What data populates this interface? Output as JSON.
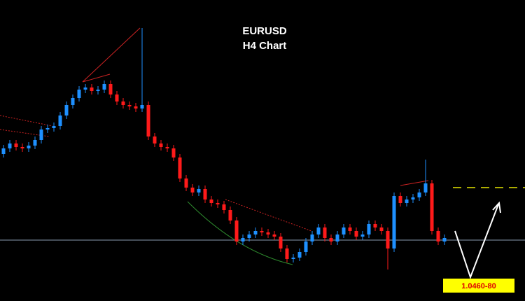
{
  "chart_data": {
    "type": "candlestick",
    "title": "EURUSD",
    "subtitle": "H4 Chart",
    "annotation": "1.0460-80",
    "up_color": "#1e90ff",
    "down_color": "#ff1a1a",
    "open": [
      1.068,
      1.0688,
      1.0695,
      1.069,
      1.0688,
      1.0692,
      1.07,
      1.0715,
      1.0717,
      1.072,
      1.0735,
      1.075,
      1.076,
      1.0772,
      1.0775,
      1.077,
      1.0772,
      1.078,
      1.0765,
      1.0755,
      1.075,
      1.0748,
      1.0745,
      1.075,
      1.0705,
      1.0695,
      1.069,
      1.0688,
      1.0675,
      1.0645,
      1.0632,
      1.0625,
      1.063,
      1.0615,
      1.061,
      1.0608,
      1.06,
      1.0585,
      1.0555,
      1.056,
      1.0565,
      1.057,
      1.0568,
      1.0565,
      1.0562,
      1.0545,
      1.053,
      1.0532,
      1.054,
      1.0555,
      1.0565,
      1.0575,
      1.056,
      1.0555,
      1.0565,
      1.0575,
      1.057,
      1.0562,
      1.0565,
      1.058,
      1.0575,
      1.057,
      1.0545,
      1.062,
      1.061,
      1.0615,
      1.0618,
      1.0625,
      1.0638,
      1.057,
      1.0555
    ],
    "high": [
      1.0693,
      1.07,
      1.07,
      1.0695,
      1.0697,
      1.0705,
      1.072,
      1.0722,
      1.0725,
      1.074,
      1.0755,
      1.0765,
      1.0777,
      1.078,
      1.078,
      1.0777,
      1.0785,
      1.0785,
      1.077,
      1.076,
      1.0755,
      1.0753,
      1.086,
      1.0755,
      1.071,
      1.07,
      1.0695,
      1.0693,
      1.068,
      1.065,
      1.0637,
      1.0635,
      1.0635,
      1.062,
      1.0615,
      1.0613,
      1.0605,
      1.059,
      1.0565,
      1.057,
      1.0575,
      1.0575,
      1.0573,
      1.057,
      1.0567,
      1.055,
      1.0537,
      1.0545,
      1.056,
      1.057,
      1.058,
      1.058,
      1.0565,
      1.057,
      1.058,
      1.058,
      1.0575,
      1.057,
      1.0585,
      1.0585,
      1.058,
      1.0575,
      1.0625,
      1.0625,
      1.062,
      1.0623,
      1.063,
      1.0672,
      1.0643,
      1.0575,
      1.0565
    ],
    "low": [
      1.0675,
      1.0683,
      1.0685,
      1.0683,
      1.0683,
      1.0687,
      1.0695,
      1.071,
      1.0712,
      1.0715,
      1.073,
      1.0745,
      1.0755,
      1.0767,
      1.0765,
      1.0765,
      1.0767,
      1.076,
      1.075,
      1.0745,
      1.0743,
      1.074,
      1.074,
      1.07,
      1.069,
      1.0685,
      1.0683,
      1.067,
      1.064,
      1.0627,
      1.062,
      1.062,
      1.061,
      1.0605,
      1.0603,
      1.0595,
      1.058,
      1.055,
      1.055,
      1.0555,
      1.056,
      1.0563,
      1.056,
      1.0557,
      1.054,
      1.0525,
      1.0525,
      1.0527,
      1.0535,
      1.055,
      1.056,
      1.0555,
      1.055,
      1.055,
      1.056,
      1.0565,
      1.0557,
      1.0557,
      1.056,
      1.057,
      1.0565,
      1.0515,
      1.054,
      1.0605,
      1.0605,
      1.061,
      1.0613,
      1.062,
      1.0565,
      1.055,
      1.055
    ],
    "close": [
      1.0688,
      1.0695,
      1.069,
      1.0688,
      1.0692,
      1.07,
      1.0715,
      1.0717,
      1.072,
      1.0735,
      1.075,
      1.076,
      1.0772,
      1.0775,
      1.077,
      1.0772,
      1.078,
      1.0765,
      1.0755,
      1.075,
      1.0748,
      1.0745,
      1.075,
      1.0705,
      1.0695,
      1.069,
      1.0688,
      1.0675,
      1.0645,
      1.0632,
      1.0625,
      1.063,
      1.0615,
      1.061,
      1.0608,
      1.06,
      1.0585,
      1.0555,
      1.056,
      1.0565,
      1.057,
      1.0568,
      1.0565,
      1.0562,
      1.0545,
      1.053,
      1.0532,
      1.054,
      1.0555,
      1.0565,
      1.0575,
      1.056,
      1.0555,
      1.0565,
      1.0575,
      1.057,
      1.0562,
      1.0565,
      1.058,
      1.0575,
      1.057,
      1.0545,
      1.062,
      1.061,
      1.0615,
      1.0618,
      1.0625,
      1.0638,
      1.057,
      1.0555,
      1.056
    ]
  }
}
